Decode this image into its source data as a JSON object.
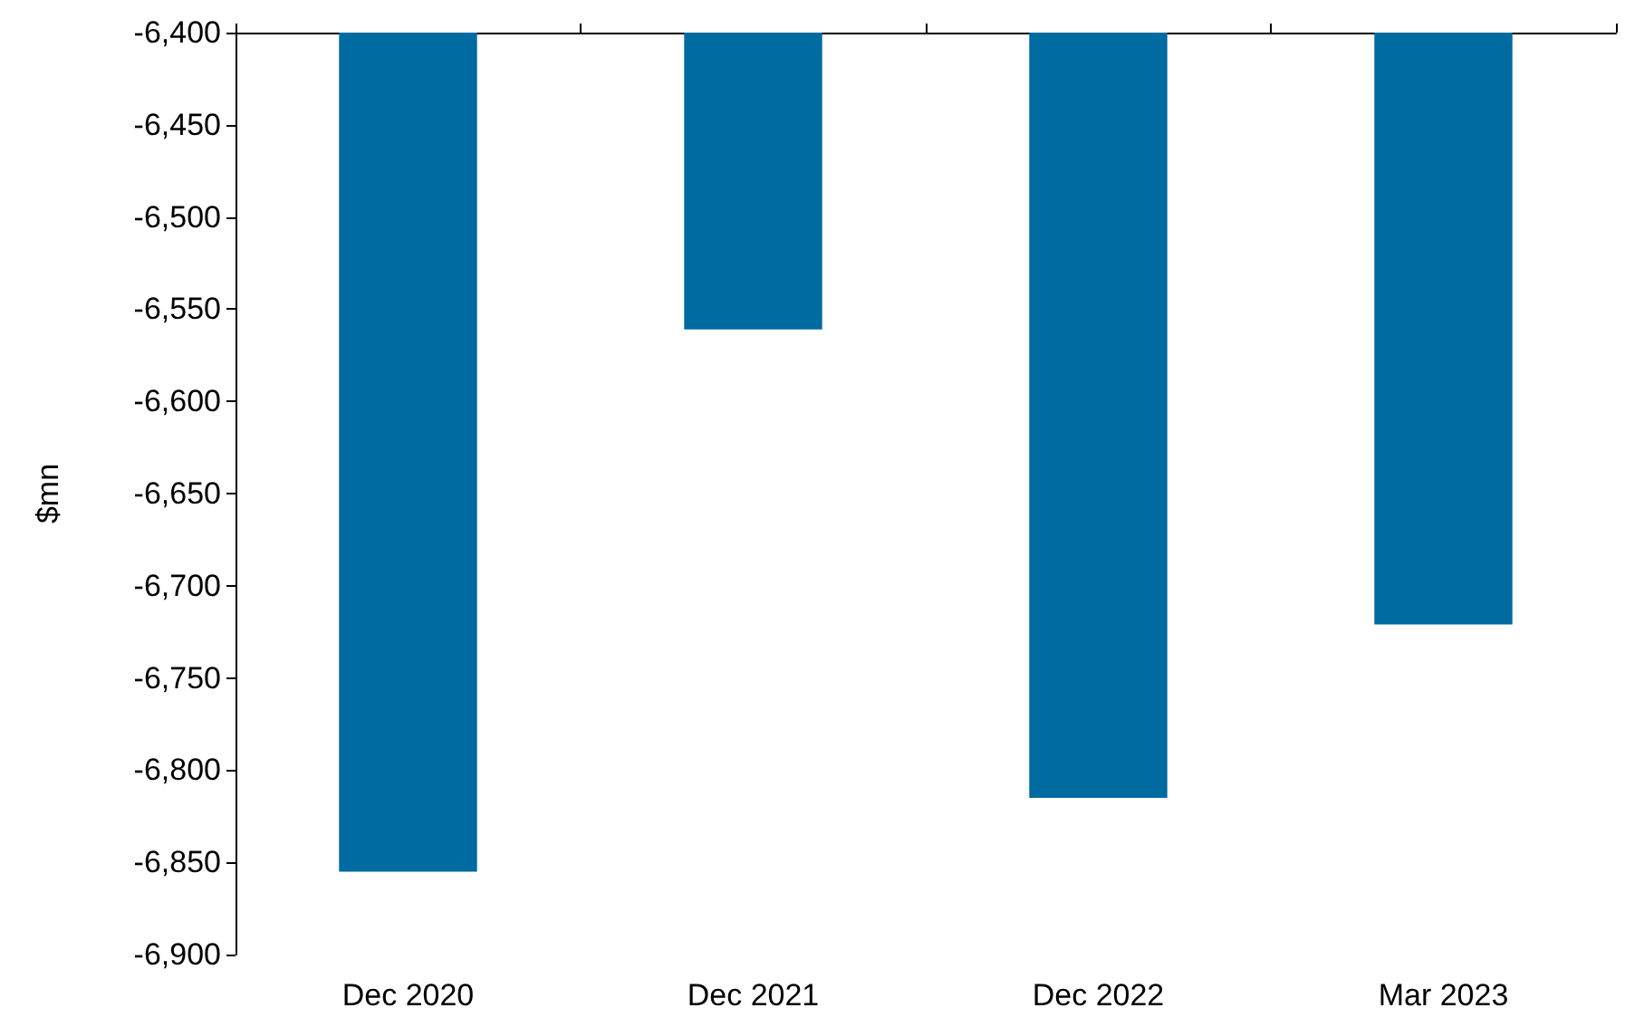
{
  "chart_data": {
    "type": "bar",
    "ylabel": "$mn",
    "categories": [
      "Dec 2020",
      "Dec 2021",
      "Dec 2022",
      "Mar 2023"
    ],
    "values": [
      -6855,
      -6561,
      -6815,
      -6721
    ],
    "color": "#006ba1",
    "ylim": [
      -6900,
      -6400
    ],
    "yticks": [
      {
        "value": -6900,
        "label": "-6,900"
      },
      {
        "value": -6850,
        "label": "-6,850"
      },
      {
        "value": -6800,
        "label": "-6,800"
      },
      {
        "value": -6750,
        "label": "-6,750"
      },
      {
        "value": -6700,
        "label": "-6,700"
      },
      {
        "value": -6650,
        "label": "-6,650"
      },
      {
        "value": -6600,
        "label": "-6,600"
      },
      {
        "value": -6550,
        "label": "-6,550"
      },
      {
        "value": -6500,
        "label": "-6,500"
      },
      {
        "value": -6450,
        "label": "-6,450"
      },
      {
        "value": -6400,
        "label": "-6,400"
      }
    ],
    "grid": false
  }
}
